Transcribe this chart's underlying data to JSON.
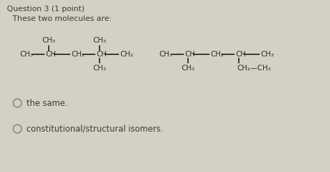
{
  "bg_color": "#d8d5c8",
  "title": "Question 3 (1 point)",
  "subtitle": "These two molecules are:",
  "text_color": "#3a3a3a",
  "mol_color": "#2a2a2a",
  "line_color": "#2a2a2a",
  "circle_color": "#888888",
  "options": [
    "the same.",
    "constitutional/structural isomers."
  ],
  "mol1_main": [
    "CH₃",
    "—",
    "CH",
    "—",
    "CH₂",
    "—",
    "CH",
    "—",
    "CH₂"
  ],
  "mol2_main": [
    "CH₃",
    "—",
    "CH",
    "—",
    "CH₂",
    "—",
    "CH",
    "—",
    "CH₃"
  ]
}
